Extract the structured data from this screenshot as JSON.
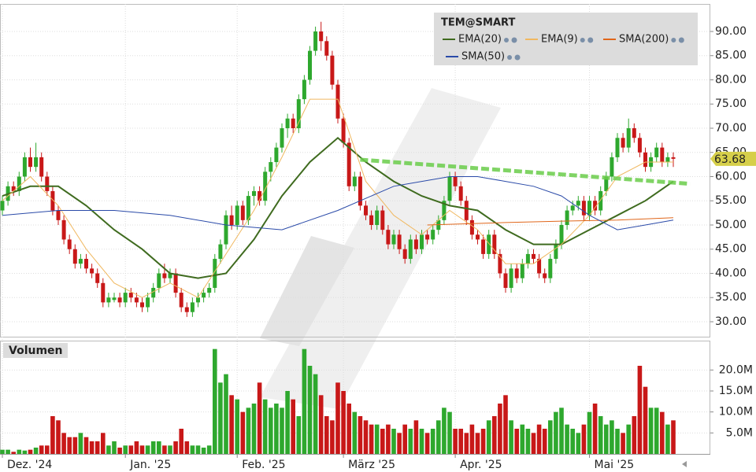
{
  "chart_data": {
    "type": "candlestick",
    "title": "TEM@SMART",
    "categories": [
      "Dez. '24",
      null,
      null,
      null,
      null,
      null,
      null,
      null,
      null,
      null,
      null,
      null,
      null,
      null,
      null,
      null,
      null,
      null,
      null,
      null,
      null,
      null,
      "Jan. '25",
      null,
      null,
      null,
      null,
      null,
      null,
      null,
      null,
      null,
      null,
      null,
      null,
      null,
      null,
      null,
      null,
      null,
      null,
      null,
      "Feb. '25",
      null,
      null,
      null,
      null,
      null,
      null,
      null,
      null,
      null,
      null,
      null,
      null,
      null,
      null,
      null,
      null,
      null,
      null,
      "März '25",
      null,
      null,
      null,
      null,
      null,
      null,
      null,
      null,
      null,
      null,
      null,
      null,
      null,
      null,
      null,
      null,
      null,
      null,
      null,
      "Apr. '25",
      null,
      null,
      null,
      null,
      null,
      null,
      null,
      null,
      null,
      null,
      null,
      null,
      null,
      null,
      null,
      null,
      null,
      null,
      null,
      null,
      null,
      null,
      null,
      "Mai '25",
      null,
      null,
      null,
      null,
      null,
      null,
      null,
      null,
      null,
      null,
      null,
      null,
      null,
      null,
      null
    ],
    "ohlc": [
      [
        53,
        56,
        52,
        55
      ],
      [
        55,
        59,
        54,
        58
      ],
      [
        58,
        59,
        56,
        57
      ],
      [
        57,
        61,
        56,
        60
      ],
      [
        60,
        65,
        59,
        64
      ],
      [
        64,
        66,
        61,
        62
      ],
      [
        62,
        67,
        61,
        64
      ],
      [
        64,
        65,
        59,
        60
      ],
      [
        60,
        61,
        56,
        57
      ],
      [
        57,
        58,
        52,
        53
      ],
      [
        53,
        54,
        50,
        51
      ],
      [
        51,
        52,
        46,
        47
      ],
      [
        47,
        48,
        44,
        45
      ],
      [
        45,
        46,
        41,
        42
      ],
      [
        42,
        44,
        41,
        43
      ],
      [
        43,
        44,
        40,
        41
      ],
      [
        41,
        42,
        39,
        40
      ],
      [
        40,
        41,
        37,
        38
      ],
      [
        38,
        39,
        33,
        34
      ],
      [
        34,
        36,
        33,
        35
      ],
      [
        34.5,
        36,
        34,
        35
      ],
      [
        35,
        36,
        33,
        34
      ],
      [
        34,
        37,
        33,
        36
      ],
      [
        36,
        37,
        34,
        35
      ],
      [
        35,
        36,
        33,
        34
      ],
      [
        34,
        35,
        32,
        33
      ],
      [
        33,
        36,
        32,
        35
      ],
      [
        35,
        38,
        34,
        37
      ],
      [
        37,
        41,
        36,
        40
      ],
      [
        40,
        42,
        38,
        39
      ],
      [
        39,
        41,
        38,
        40
      ],
      [
        40,
        41,
        35,
        36
      ],
      [
        36,
        37,
        32,
        33
      ],
      [
        33,
        34,
        31,
        32
      ],
      [
        32,
        35,
        31,
        34
      ],
      [
        34,
        36,
        33,
        35
      ],
      [
        35,
        37,
        34,
        36
      ],
      [
        36,
        38,
        35,
        37
      ],
      [
        37,
        44,
        36,
        43
      ],
      [
        43,
        47,
        42,
        46
      ],
      [
        46,
        53,
        45,
        52
      ],
      [
        52,
        54,
        49,
        50
      ],
      [
        50,
        55,
        49,
        54
      ],
      [
        54,
        55,
        50,
        51
      ],
      [
        51,
        57,
        50,
        56
      ],
      [
        56,
        58,
        54,
        57
      ],
      [
        57,
        58,
        54,
        55
      ],
      [
        55,
        62,
        54,
        61
      ],
      [
        61,
        64,
        59,
        63
      ],
      [
        63,
        67,
        62,
        66
      ],
      [
        66,
        71,
        65,
        70
      ],
      [
        70,
        73,
        68,
        72
      ],
      [
        72,
        73,
        69,
        70
      ],
      [
        70,
        77,
        69,
        76
      ],
      [
        76,
        81,
        75,
        80
      ],
      [
        80,
        87,
        79,
        86
      ],
      [
        86,
        91,
        85,
        90
      ],
      [
        90,
        92,
        86,
        88
      ],
      [
        88,
        89,
        84,
        85
      ],
      [
        85,
        86,
        78,
        79
      ],
      [
        79,
        80,
        71,
        72
      ],
      [
        72,
        73,
        66,
        67
      ],
      [
        67,
        68,
        57,
        58
      ],
      [
        58,
        61,
        57,
        60
      ],
      [
        60,
        61,
        53,
        54
      ],
      [
        54,
        55,
        51,
        52
      ],
      [
        52,
        53,
        49,
        50
      ],
      [
        50,
        54,
        49,
        53
      ],
      [
        53,
        54,
        48,
        49
      ],
      [
        49,
        50,
        45,
        46
      ],
      [
        46,
        49,
        45,
        48
      ],
      [
        48,
        49,
        44,
        45
      ],
      [
        45,
        46,
        42,
        43
      ],
      [
        43,
        48,
        42,
        47
      ],
      [
        47,
        48,
        44,
        45
      ],
      [
        45,
        49,
        44,
        48
      ],
      [
        48,
        49,
        46,
        47
      ],
      [
        47,
        50,
        46,
        49
      ],
      [
        49,
        52,
        48,
        51
      ],
      [
        51,
        56,
        50,
        55
      ],
      [
        55,
        61,
        54,
        60
      ],
      [
        60,
        61,
        57,
        58
      ],
      [
        58,
        59,
        54,
        55
      ],
      [
        55,
        56,
        50,
        51
      ],
      [
        51,
        52,
        47,
        48
      ],
      [
        48,
        49,
        46,
        47
      ],
      [
        47,
        48,
        43,
        44
      ],
      [
        44,
        49,
        43,
        48
      ],
      [
        48,
        49,
        43,
        44
      ],
      [
        44,
        45,
        39,
        40
      ],
      [
        40,
        41,
        36,
        37
      ],
      [
        37,
        42,
        36,
        41
      ],
      [
        41,
        42,
        38,
        39
      ],
      [
        39,
        43,
        38,
        42
      ],
      [
        42,
        45,
        41,
        44
      ],
      [
        44,
        45,
        42,
        43
      ],
      [
        43,
        44,
        39,
        40
      ],
      [
        40,
        41,
        38,
        39
      ],
      [
        39,
        44,
        38,
        43
      ],
      [
        43,
        47,
        42,
        46
      ],
      [
        46,
        51,
        45,
        50
      ],
      [
        50,
        54,
        49,
        53
      ],
      [
        53,
        55,
        52,
        54
      ],
      [
        54,
        56,
        53,
        55
      ],
      [
        55,
        56,
        51,
        52
      ],
      [
        52,
        56,
        51,
        55
      ],
      [
        55,
        56,
        52,
        53
      ],
      [
        53,
        58,
        52,
        57
      ],
      [
        57,
        61,
        56,
        60
      ],
      [
        60,
        65,
        59,
        64
      ],
      [
        64,
        69,
        63,
        68
      ],
      [
        68,
        69,
        65,
        66
      ],
      [
        66,
        72,
        65,
        70
      ],
      [
        70,
        71,
        67,
        68
      ],
      [
        68,
        69,
        64,
        65
      ],
      [
        65,
        66,
        61,
        62
      ],
      [
        62,
        65,
        61,
        64
      ],
      [
        64,
        67,
        63,
        66
      ],
      [
        66,
        67,
        62,
        63
      ],
      [
        63,
        65,
        62,
        64
      ],
      [
        64,
        65,
        62,
        63.68
      ]
    ],
    "up_color": "#2ea82e",
    "down_color": "#c81818",
    "ylim": [
      26.91,
      95.69
    ],
    "yticks": [
      {
        "value": 30,
        "label": "30.00"
      },
      {
        "value": 35,
        "label": "35.00"
      },
      {
        "value": 40,
        "label": "40.00"
      },
      {
        "value": 45,
        "label": "45.00"
      },
      {
        "value": 50,
        "label": "50.00"
      },
      {
        "value": 55,
        "label": "55.00"
      },
      {
        "value": 60,
        "label": "60.00"
      },
      {
        "value": 65,
        "label": "65.00"
      },
      {
        "value": 70,
        "label": "70.00"
      },
      {
        "value": 75,
        "label": "75.00"
      },
      {
        "value": 80,
        "label": "80.00"
      },
      {
        "value": 85,
        "label": "85.00"
      },
      {
        "value": 90,
        "label": "90.00"
      }
    ],
    "grid": true,
    "legend": "top-right",
    "lines": [
      {
        "name": "EMA(20)",
        "color": "#3f6b1f",
        "width": 2,
        "x": [
          0,
          5,
          10,
          15,
          20,
          25,
          30,
          35,
          40,
          45,
          50,
          55,
          60,
          65,
          70,
          75,
          80,
          85,
          90,
          95,
          100,
          105,
          110,
          115,
          120
        ],
        "values": [
          56,
          58,
          58,
          54,
          49,
          45,
          40,
          39,
          40,
          47,
          56,
          63,
          68,
          63,
          59,
          56,
          54,
          53,
          49,
          46,
          46,
          49,
          52,
          55,
          59
        ]
      },
      {
        "name": "EMA(9)",
        "color": "#f0b860",
        "width": 1,
        "x": [
          0,
          5,
          10,
          15,
          20,
          25,
          30,
          35,
          40,
          45,
          50,
          55,
          60,
          65,
          70,
          75,
          80,
          85,
          90,
          95,
          100,
          105,
          110,
          115,
          120
        ],
        "values": [
          55,
          60,
          54,
          45,
          38,
          35,
          38,
          35,
          44,
          53,
          64,
          76,
          76,
          59,
          52,
          48,
          53,
          49,
          42,
          42,
          46,
          52,
          60,
          63,
          63
        ]
      },
      {
        "name": "SMA(200)",
        "color": "#e0661a",
        "width": 1,
        "x": [
          76,
          90,
          100,
          110,
          120
        ],
        "values": [
          50,
          50.5,
          50.8,
          51,
          51.5
        ]
      },
      {
        "name": "SMA(50)",
        "color": "#2a4aa8",
        "width": 1,
        "x": [
          0,
          10,
          20,
          30,
          40,
          50,
          60,
          70,
          80,
          85,
          90,
          95,
          100,
          105,
          110,
          115,
          120
        ],
        "values": [
          52,
          53,
          53,
          52,
          50,
          49,
          53,
          58,
          60,
          60,
          59,
          58,
          56,
          52,
          49,
          50,
          51
        ]
      }
    ],
    "trendline": {
      "color": "#6acd4a",
      "x": [
        64,
        123
      ],
      "values": [
        63.5,
        58.5
      ]
    },
    "last_price": 63.68,
    "last_price_color": "#d6cf4a",
    "volume": {
      "title": "Volumen",
      "values": [
        1,
        1,
        0.5,
        1,
        0.8,
        1,
        1.5,
        2,
        2,
        9,
        8,
        5,
        4,
        4,
        5,
        4,
        3,
        3,
        5,
        2,
        3,
        1.5,
        2,
        2,
        3,
        2,
        2,
        3,
        3,
        2,
        2,
        3,
        6,
        3,
        2,
        2,
        1.5,
        2,
        25,
        17,
        19,
        14,
        13,
        10,
        11,
        12,
        17,
        13,
        11,
        12,
        11,
        15,
        13,
        9,
        25,
        21,
        19,
        14,
        9,
        8,
        17,
        15,
        12,
        10,
        9,
        8,
        7,
        7,
        6,
        7,
        6,
        5,
        7,
        6,
        8,
        6,
        5,
        6,
        8,
        11,
        10,
        6,
        6,
        5,
        7,
        5,
        6,
        8,
        9,
        12,
        14,
        8,
        6,
        7,
        6,
        5,
        7,
        6,
        8,
        10,
        11,
        7,
        6,
        5,
        7,
        10,
        12,
        9,
        7,
        8,
        6,
        5,
        7,
        9,
        21,
        16,
        11,
        11,
        10,
        7,
        8
      ],
      "ylim": [
        0,
        27
      ],
      "yticks": [
        {
          "value": 5,
          "label": "5.0M"
        },
        {
          "value": 10,
          "label": "10.0M"
        },
        {
          "value": 15,
          "label": "15.0M"
        },
        {
          "value": 20,
          "label": "20.0M"
        }
      ]
    }
  }
}
